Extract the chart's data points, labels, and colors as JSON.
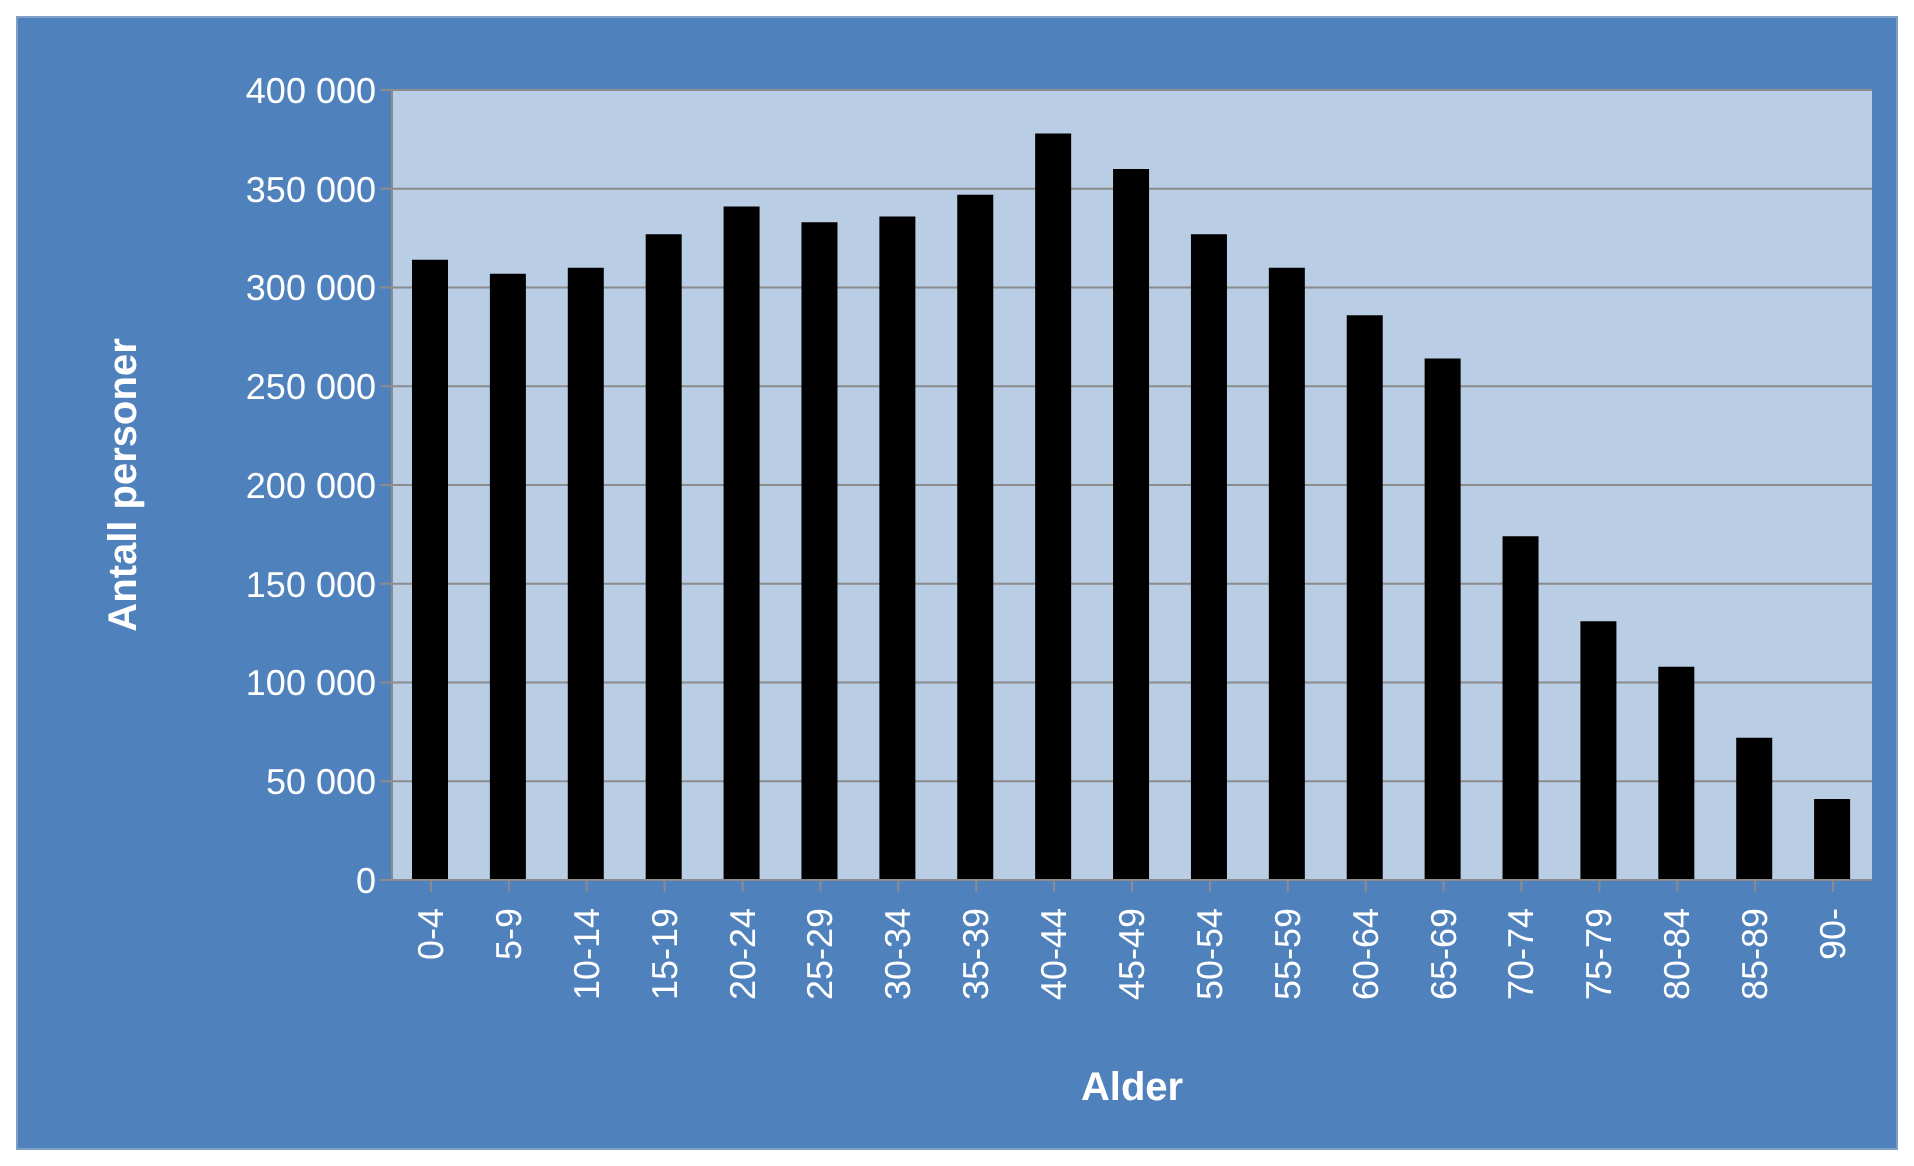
{
  "chart_data": {
    "type": "bar",
    "xlabel": "Alder",
    "ylabel": "Antall personer",
    "categories": [
      "0-4",
      "5-9",
      "10-14",
      "15-19",
      "20-24",
      "25-29",
      "30-34",
      "35-39",
      "40-44",
      "45-49",
      "50-54",
      "55-59",
      "60-64",
      "65-69",
      "70-74",
      "75-79",
      "80-84",
      "85-89",
      "90-"
    ],
    "values": [
      314000,
      307000,
      310000,
      327000,
      341000,
      333000,
      336000,
      347000,
      378000,
      360000,
      327000,
      310000,
      286000,
      264000,
      174000,
      131000,
      108000,
      72000,
      41000
    ],
    "color": "#000000",
    "ylim": [
      0,
      400000
    ],
    "yticks": [
      {
        "value": 0,
        "label": "0"
      },
      {
        "value": 50000,
        "label": "50 000"
      },
      {
        "value": 100000,
        "label": "100 000"
      },
      {
        "value": 150000,
        "label": "150 000"
      },
      {
        "value": 200000,
        "label": "200 000"
      },
      {
        "value": 250000,
        "label": "250 000"
      },
      {
        "value": 300000,
        "label": "300 000"
      },
      {
        "value": 350000,
        "label": "350 000"
      },
      {
        "value": 400000,
        "label": "400 000"
      }
    ],
    "grid": "y",
    "legend": false
  }
}
